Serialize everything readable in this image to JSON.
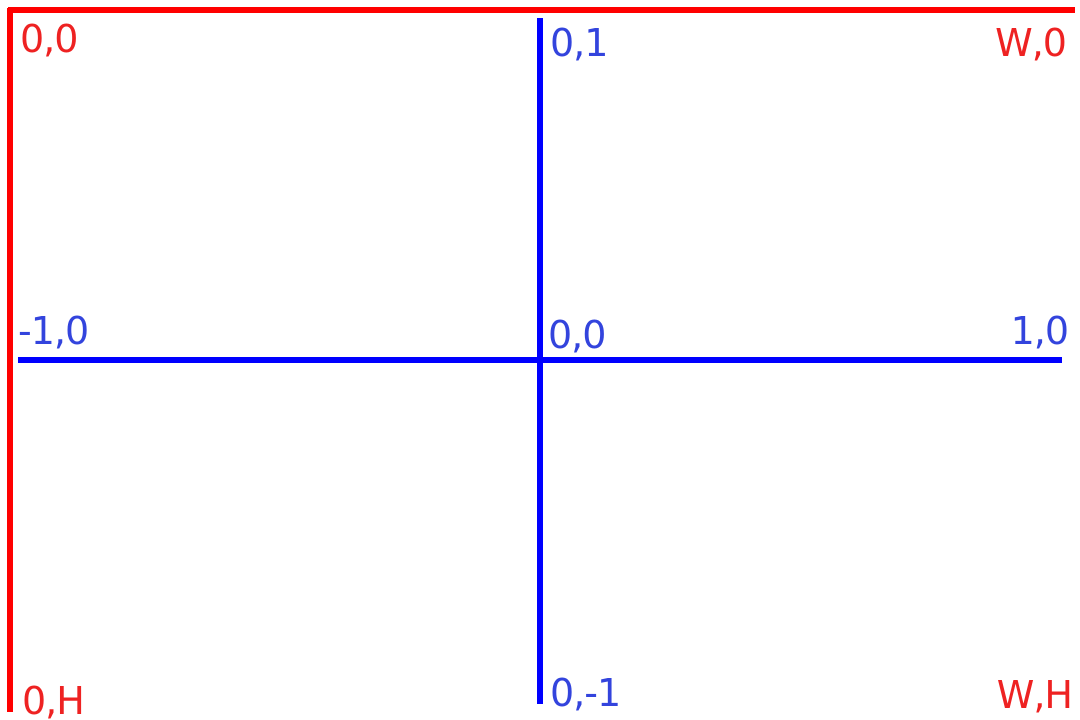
{
  "colors": {
    "pixel_frame": "#ff0000",
    "pixel_label": "#ee2222",
    "normalized_axes": "#0000ff",
    "normalized_label": "#3344dd",
    "background": "#ffffff"
  },
  "pixel_corners": {
    "top_left": "0,0",
    "top_right": "W,0",
    "bottom_left": "0,H",
    "bottom_right": "W,H"
  },
  "normalized_points": {
    "top": "0,1",
    "left": "-1,0",
    "center": "0,0",
    "right": "1,0",
    "bottom": "0,-1"
  }
}
